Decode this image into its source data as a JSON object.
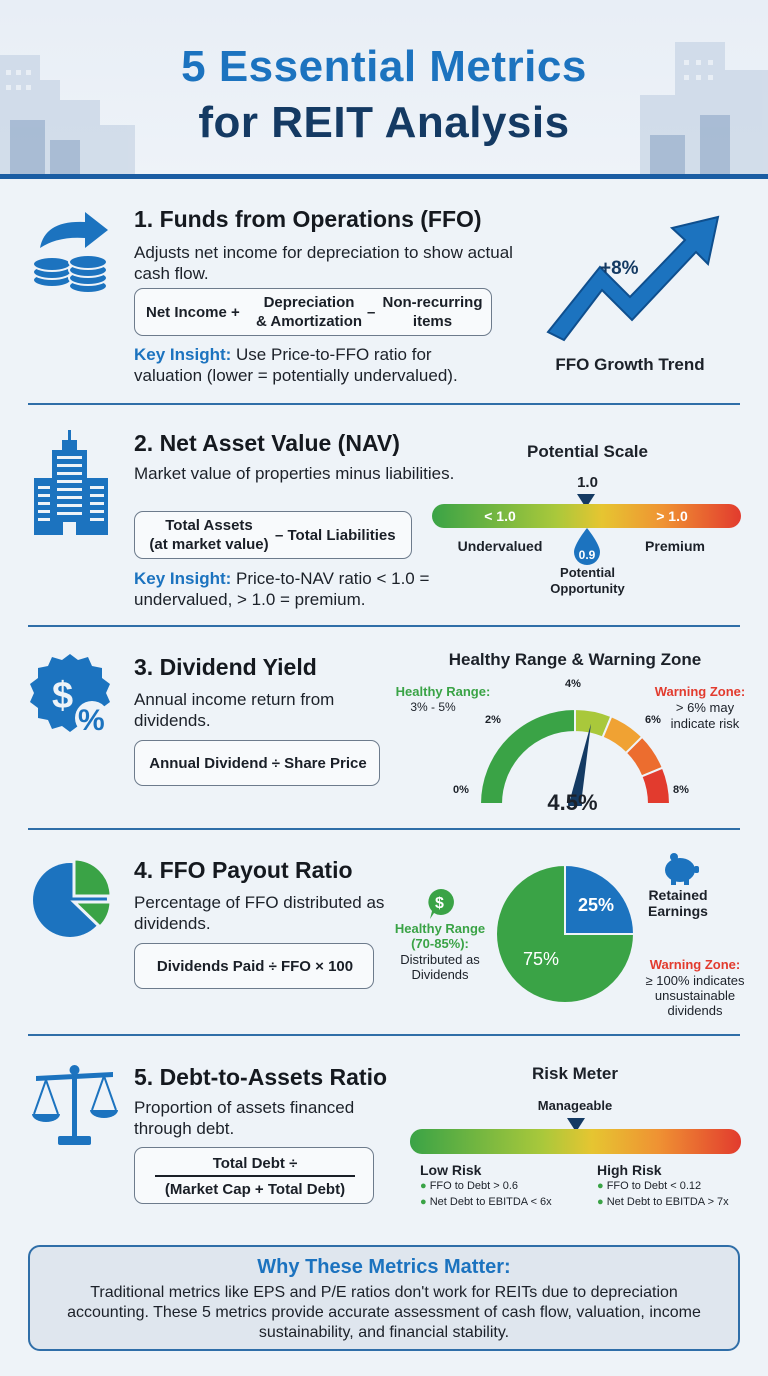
{
  "title": {
    "line1": "5 Essential Metrics",
    "line2": "for REIT Analysis"
  },
  "colors": {
    "accent_blue": "#1c73bf",
    "navy": "#143a63",
    "green": "#3aa346",
    "red": "#e23b2e",
    "yellow": "#e6c531"
  },
  "ffo": {
    "title": "1. Funds from Operations (FFO)",
    "description": "Adjusts net income for depreciation to show actual cash flow.",
    "formula": {
      "part1": "Net Income +",
      "part2a": "Depreciation",
      "part2b": "& Amortization",
      "op": "–",
      "part3a": "Non-recurring",
      "part3b": "items"
    },
    "insight_label": "Key Insight:",
    "insight_text": " Use Price-to-FFO ratio for valuation (lower = potentially undervalued).",
    "chart_label": "FFO Growth Trend",
    "growth": "+8%"
  },
  "nav": {
    "title": "2. Net Asset Value (NAV)",
    "description": "Market value of properties minus liabilities.",
    "formula": {
      "part1a": "Total Assets",
      "part1b": "(at market value)",
      "op": "– Total Liabilities"
    },
    "insight_label": "Key Insight:",
    "insight_text": " Price-to-NAV ratio < 1.0 = undervalued, > 1.0 = premium.",
    "scale_title": "Potential Scale",
    "marker_value": "1.0",
    "left_label": "< 1.0",
    "right_label": "> 1.0",
    "undervalued": "Undervalued",
    "premium": "Premium",
    "drop_value": "0.9",
    "opportunity": "Potential Opportunity"
  },
  "dividend": {
    "title": "3. Dividend Yield",
    "description": "Annual income return from dividends.",
    "formula": "Annual Dividend ÷ Share Price",
    "gauge_title": "Healthy Range & Warning Zone",
    "healthy_label": "Healthy Range:",
    "healthy_range": "3% - 5%",
    "warning_label": "Warning Zone:",
    "warning_text1": "> 6% may",
    "warning_text2": "indicate risk",
    "ticks": {
      "t0": "0%",
      "t2": "2%",
      "t4": "4%",
      "t6": "6%",
      "t8": "8%"
    },
    "value_label": "4.5%",
    "value": 4.5,
    "max": 8
  },
  "payout": {
    "title": "4. FFO Payout Ratio",
    "description": "Percentage of FFO distributed as dividends.",
    "formula": "Dividends Paid ÷ FFO × 100",
    "retained_pct": "25%",
    "retained_label1": "Retained",
    "retained_label2": "Earnings",
    "distributed_pct": "75%",
    "healthy_label1": "Healthy Range",
    "healthy_label2": "(70-85%):",
    "healthy_text1": "Distributed as",
    "healthy_text2": "Dividends",
    "warning_label": "Warning Zone:",
    "warning_text1": "≥ 100% indicates",
    "warning_text2": "unsustainable",
    "warning_text3": "dividends",
    "retained_value": 25,
    "distributed_value": 75
  },
  "debt": {
    "title": "5. Debt-to-Assets Ratio",
    "description": "Proportion of assets financed through debt.",
    "formula_top": "Total Debt ÷",
    "formula_bottom": "(Market Cap + Total Debt)",
    "meter_title": "Risk Meter",
    "meter_marker": "Manageable",
    "low_title": "Low Risk",
    "low_items": [
      "FFO to Debt > 0.6",
      "Net Debt to EBITDA < 6x"
    ],
    "high_title": "High Risk",
    "high_items": [
      "FFO to Debt < 0.12",
      "Net Debt to EBITDA > 7x"
    ]
  },
  "why": {
    "title": "Why These Metrics Matter:",
    "text": "Traditional metrics like EPS and P/E ratios don't work for REITs due to depreciation accounting. These 5 metrics provide accurate assessment of cash flow, valuation, income sustainability, and financial stability."
  }
}
